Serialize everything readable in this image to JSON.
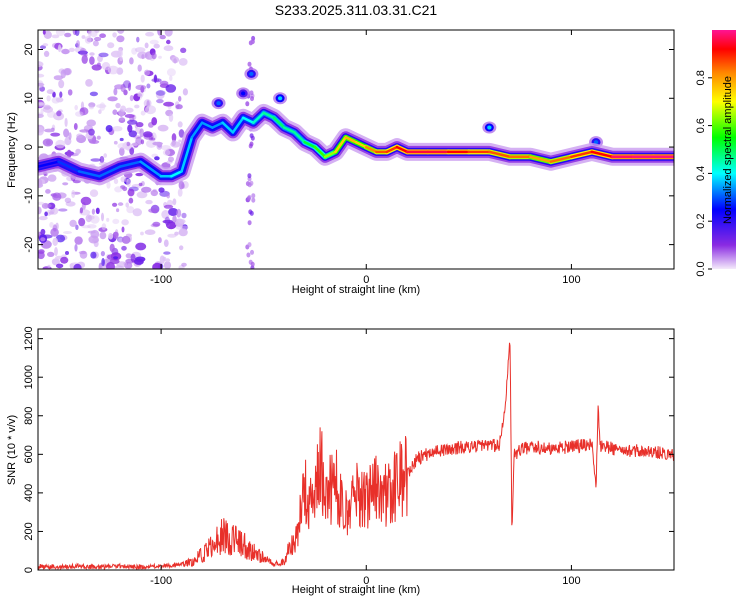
{
  "chart_data": [
    {
      "type": "heatmap",
      "title": "S233.2025.311.03.31.C21",
      "xlabel": "Height of straight line (km)",
      "ylabel": "Frequency (Hz)",
      "xlim": [
        -160,
        150
      ],
      "ylim": [
        -25,
        24
      ],
      "x_ticks": [
        -100,
        0,
        100
      ],
      "x_tick_labels": [
        "-100",
        "0",
        "100"
      ],
      "y_ticks": [
        -20,
        -10,
        0,
        10,
        20
      ],
      "y_tick_labels": [
        "-20",
        "-10",
        "0",
        "10",
        "20"
      ],
      "colorbar": {
        "label": "Normalized spectral amplitude",
        "range": [
          0,
          1
        ],
        "ticks": [
          0.0,
          0.2,
          0.4,
          0.6,
          0.8
        ],
        "tick_labels": [
          "0.0",
          "0.2",
          "0.4",
          "0.6",
          "0.8"
        ],
        "colormap": [
          "#f4eafa",
          "#8a2be2",
          "#0000ff",
          "#00ffff",
          "#00ff00",
          "#ffff00",
          "#ff8800",
          "#ff0000",
          "#ff1493"
        ]
      },
      "ridge": {
        "x": [
          -160,
          -150,
          -140,
          -130,
          -120,
          -110,
          -100,
          -95,
          -90,
          -85,
          -80,
          -75,
          -70,
          -65,
          -60,
          -55,
          -50,
          -45,
          -40,
          -35,
          -30,
          -25,
          -20,
          -15,
          -10,
          -5,
          0,
          5,
          10,
          15,
          20,
          30,
          40,
          50,
          60,
          70,
          80,
          90,
          100,
          110,
          120,
          130,
          140,
          150
        ],
        "freq": [
          -4,
          -3,
          -5,
          -6,
          -4,
          -3,
          -6,
          -6,
          -5,
          2,
          5,
          4,
          5,
          3,
          6,
          5,
          7,
          6,
          4,
          3,
          1,
          0,
          -2,
          -1,
          2,
          1,
          0,
          -1,
          -1,
          0,
          -1,
          -1,
          -1,
          -1,
          -1,
          -2,
          -2,
          -3,
          -2,
          -1,
          -2,
          -2,
          -2,
          -2
        ],
        "amplitude": [
          0.25,
          0.25,
          0.3,
          0.3,
          0.3,
          0.3,
          0.35,
          0.35,
          0.4,
          0.3,
          0.35,
          0.3,
          0.35,
          0.35,
          0.35,
          0.4,
          0.4,
          0.45,
          0.45,
          0.4,
          0.45,
          0.5,
          0.55,
          0.6,
          0.75,
          0.65,
          0.7,
          0.8,
          0.8,
          0.85,
          0.9,
          0.95,
          0.9,
          0.85,
          0.8,
          0.8,
          0.75,
          0.7,
          0.85,
          0.8,
          0.95,
          0.98,
          0.98,
          0.98
        ]
      },
      "blobs": [
        {
          "x": -42,
          "freq": 10,
          "amplitude": 0.35
        },
        {
          "x": -56,
          "freq": 15,
          "amplitude": 0.3
        },
        {
          "x": -60,
          "freq": 11,
          "amplitude": 0.25
        },
        {
          "x": -72,
          "freq": 9,
          "amplitude": 0.3
        },
        {
          "x": 60,
          "freq": 4,
          "amplitude": 0.35
        },
        {
          "x": 112,
          "freq": 1,
          "amplitude": 0.3
        }
      ]
    },
    {
      "type": "line",
      "xlabel": "Height of straight line (km)",
      "ylabel": "SNR (10 * v/v)",
      "xlim": [
        -160,
        150
      ],
      "ylim": [
        0,
        1250
      ],
      "x_ticks": [
        -100,
        0,
        100
      ],
      "x_tick_labels": [
        "-100",
        "0",
        "100"
      ],
      "y_ticks": [
        0,
        200,
        400,
        600,
        800,
        1000,
        1200
      ],
      "y_tick_labels": [
        "0",
        "200",
        "400",
        "600",
        "800",
        "1000",
        "1200"
      ],
      "series": [
        {
          "color": "#e8302a",
          "x": [
            -160,
            -150,
            -140,
            -130,
            -120,
            -110,
            -100,
            -95,
            -90,
            -85,
            -80,
            -75,
            -70,
            -65,
            -60,
            -55,
            -50,
            -45,
            -40,
            -37,
            -35,
            -32,
            -30,
            -28,
            -25,
            -22,
            -20,
            -15,
            -10,
            -5,
            0,
            5,
            10,
            15,
            20,
            25,
            30,
            40,
            50,
            60,
            65,
            68,
            69,
            70,
            71,
            72,
            75,
            80,
            90,
            100,
            110,
            112,
            113,
            114,
            115,
            120,
            130,
            140,
            150
          ],
          "y": [
            20,
            15,
            20,
            15,
            20,
            15,
            20,
            25,
            30,
            40,
            80,
            120,
            180,
            160,
            130,
            90,
            60,
            30,
            40,
            150,
            130,
            300,
            450,
            320,
            400,
            550,
            380,
            450,
            300,
            400,
            350,
            420,
            380,
            450,
            500,
            580,
            600,
            630,
            640,
            650,
            640,
            900,
            1050,
            1240,
            200,
            600,
            620,
            640,
            630,
            640,
            650,
            420,
            840,
            650,
            640,
            630,
            620,
            610,
            600
          ]
        }
      ]
    }
  ]
}
